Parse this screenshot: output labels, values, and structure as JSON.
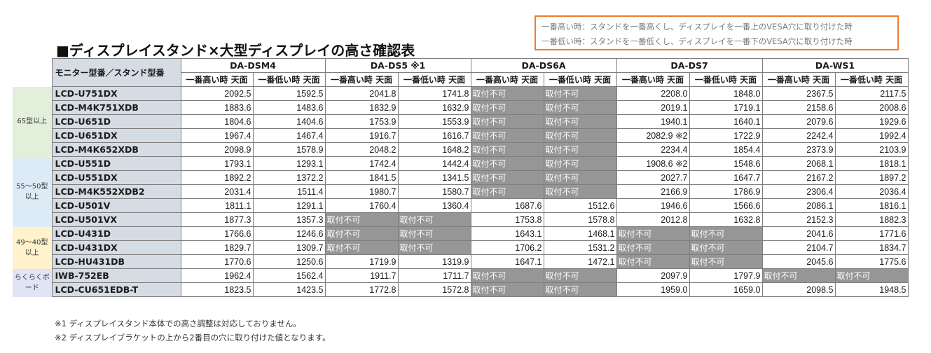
{
  "legend": {
    "line1": "一番高い時：スタンドを一番高くし、ディスプレイを一番上のVESA穴に取り付けた時",
    "line2": "一番低い時：スタンドを一番低くし、ディスプレイを一番下のVESA穴に取り付けた時"
  },
  "title": "■ディスプレイスタンド×大型ディスプレイの高さ確認表",
  "model_header": "モニター型番／スタンド型番",
  "stands": [
    "DA-DSM4",
    "DA-DS5 ※1",
    "DA-DS6A",
    "DA-DS7",
    "DA-WS1"
  ],
  "sub_high": "一番高い時 天面",
  "sub_low": "一番低い時 天面",
  "groups": [
    {
      "label": "65型以上",
      "rows": [
        [
          "LCD-U751DX",
          "2092.5",
          "1592.5",
          "2041.8",
          "1741.8",
          "取付不可",
          "取付不可",
          "2208.0",
          "1848.0",
          "2367.5",
          "2117.5"
        ],
        [
          "LCD-M4K751XDB",
          "1883.6",
          "1483.6",
          "1832.9",
          "1632.9",
          "取付不可",
          "取付不可",
          "2019.1",
          "1719.1",
          "2158.6",
          "2008.6"
        ],
        [
          "LCD-U651D",
          "1804.6",
          "1404.6",
          "1753.9",
          "1553.9",
          "取付不可",
          "取付不可",
          "1940.1",
          "1640.1",
          "2079.6",
          "1929.6"
        ],
        [
          "LCD-U651DX",
          "1967.4",
          "1467.4",
          "1916.7",
          "1616.7",
          "取付不可",
          "取付不可",
          "2082.9 ※2",
          "1722.9",
          "2242.4",
          "1992.4"
        ],
        [
          "LCD-M4K652XDB",
          "2098.9",
          "1578.9",
          "2048.2",
          "1648.2",
          "取付不可",
          "取付不可",
          "2234.4",
          "1854.4",
          "2373.9",
          "2103.9"
        ]
      ]
    },
    {
      "label": "55～50型以上",
      "rows": [
        [
          "LCD-U551D",
          "1793.1",
          "1293.1",
          "1742.4",
          "1442.4",
          "取付不可",
          "取付不可",
          "1908.6 ※2",
          "1548.6",
          "2068.1",
          "1818.1"
        ],
        [
          "LCD-U551DX",
          "1892.2",
          "1372.2",
          "1841.5",
          "1341.5",
          "取付不可",
          "取付不可",
          "2027.7",
          "1647.7",
          "2167.2",
          "1897.2"
        ],
        [
          "LCD-M4K552XDB2",
          "2031.4",
          "1511.4",
          "1980.7",
          "1580.7",
          "取付不可",
          "取付不可",
          "2166.9",
          "1786.9",
          "2306.4",
          "2036.4"
        ],
        [
          "LCD-U501V",
          "1811.1",
          "1291.1",
          "1760.4",
          "1360.4",
          "1687.6",
          "1512.6",
          "1946.6",
          "1566.6",
          "2086.1",
          "1816.1"
        ],
        [
          "LCD-U501VX",
          "1877.3",
          "1357.3",
          "取付不可",
          "取付不可",
          "1753.8",
          "1578.8",
          "2012.8",
          "1632.8",
          "2152.3",
          "1882.3"
        ]
      ]
    },
    {
      "label": "49～40型以上",
      "rows": [
        [
          "LCD-U431D",
          "1766.6",
          "1246.6",
          "取付不可",
          "取付不可",
          "1643.1",
          "1468.1",
          "取付不可",
          "取付不可",
          "2041.6",
          "1771.6"
        ],
        [
          "LCD-U431DX",
          "1829.7",
          "1309.7",
          "取付不可",
          "取付不可",
          "1706.2",
          "1531.2",
          "取付不可",
          "取付不可",
          "2104.7",
          "1834.7"
        ],
        [
          "LCD-HU431DB",
          "1770.6",
          "1250.6",
          "1719.9",
          "1319.9",
          "1647.1",
          "1472.1",
          "取付不可",
          "取付不可",
          "2045.6",
          "1775.6"
        ]
      ]
    },
    {
      "label": "らくらくボード",
      "rows": [
        [
          "IWB-752EB",
          "1962.4",
          "1562.4",
          "1911.7",
          "1711.7",
          "取付不可",
          "取付不可",
          "2097.9",
          "1797.9",
          "取付不可",
          "取付不可"
        ],
        [
          "LCD-CU651EDB-T",
          "1823.5",
          "1423.5",
          "1772.8",
          "1572.8",
          "取付不可",
          "取付不可",
          "1959.0",
          "1659.0",
          "2098.5",
          "1948.5"
        ]
      ]
    }
  ],
  "notes": [
    "※1 ディスプレイスタンド本体での高さ調整は対応しておりません。",
    "※2 ディスプレイブラケットの上から2番目の穴に取り付けた値となります。"
  ],
  "colors": {
    "legend_border": "#ed7d31",
    "model_cell": "#d6dce4",
    "unavailable_cell": "#969696",
    "group_65": "#e2efda",
    "group_55": "#ddebf7",
    "group_49": "#fff2cc",
    "group_board": "#e0e4f5"
  }
}
